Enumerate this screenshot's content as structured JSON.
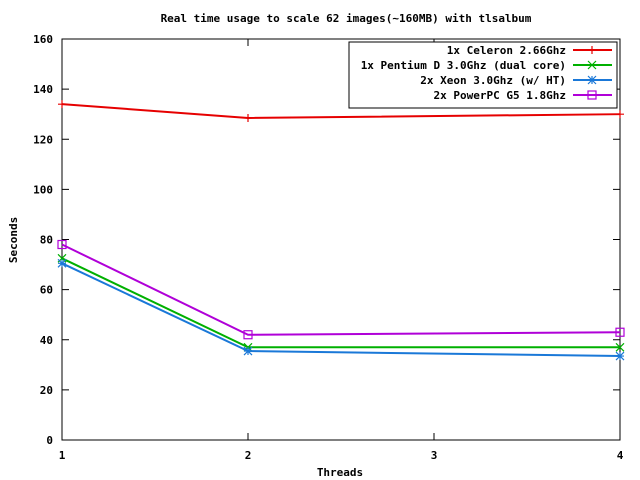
{
  "chart_data": {
    "type": "line",
    "title": "Real time usage to scale 62 images(~160MB) with tlsalbum",
    "xlabel": "Threads",
    "ylabel": "Seconds",
    "xlim": [
      1,
      4
    ],
    "ylim": [
      0,
      160
    ],
    "x_ticks": [
      1,
      2,
      3,
      4
    ],
    "y_ticks": [
      0,
      20,
      40,
      60,
      80,
      100,
      120,
      140,
      160
    ],
    "grid": false,
    "legend_position": "top-right",
    "series": [
      {
        "name": "1x Celeron 2.66Ghz",
        "color": "#e60000",
        "marker": "plus",
        "x": [
          1,
          2,
          4
        ],
        "y": [
          134,
          128.5,
          130
        ]
      },
      {
        "name": "1x Pentium D 3.0Ghz (dual core)",
        "color": "#00b000",
        "marker": "cross",
        "x": [
          1,
          2,
          4
        ],
        "y": [
          72.5,
          37,
          37
        ]
      },
      {
        "name": "2x Xeon 3.0Ghz (w/ HT)",
        "color": "#1a78d8",
        "marker": "star",
        "x": [
          1,
          2,
          4
        ],
        "y": [
          70.5,
          35.5,
          33.5
        ]
      },
      {
        "name": "2x PowerPC G5 1.8Ghz",
        "color": "#b000d8",
        "marker": "box",
        "x": [
          1,
          2,
          4
        ],
        "y": [
          78,
          42,
          43
        ]
      }
    ]
  }
}
